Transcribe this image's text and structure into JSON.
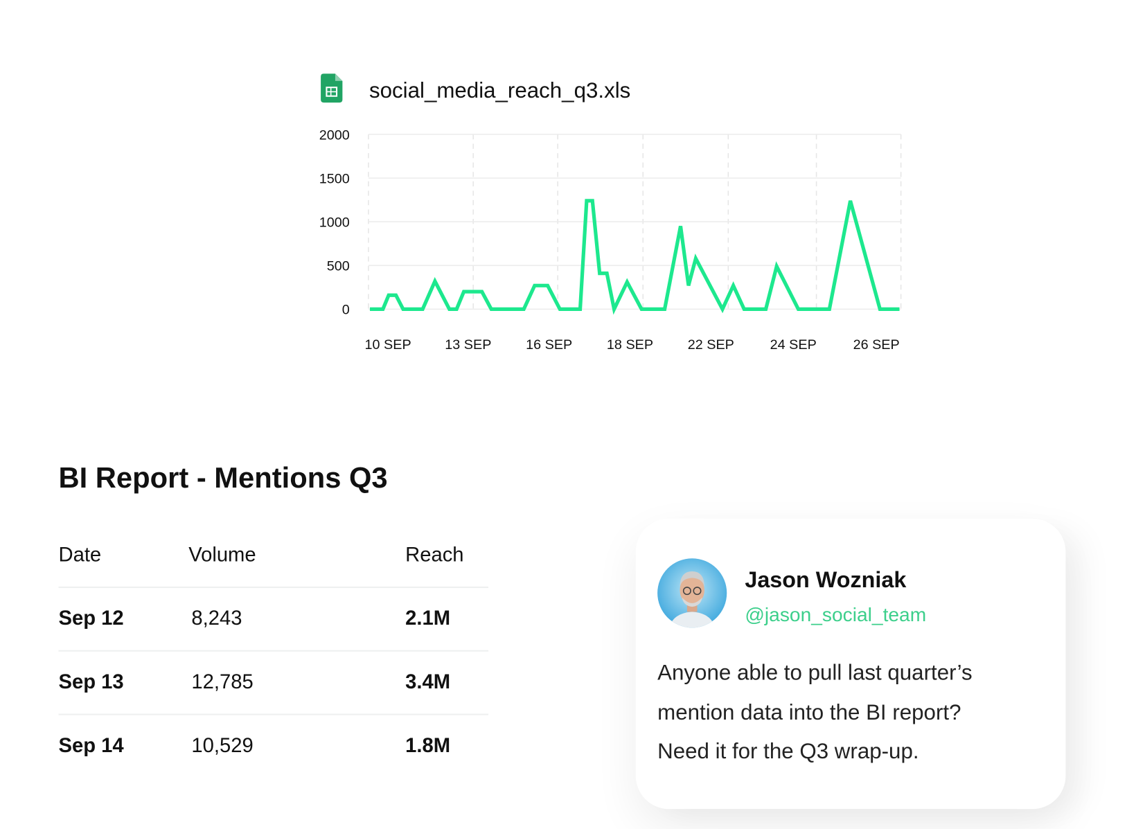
{
  "chart_data": {
    "type": "line",
    "title": "social_media_reach_q3.xls",
    "color": "#1de88e",
    "x": [
      0.1,
      1,
      1.4,
      1.9,
      2.4,
      3.75,
      4.6,
      5.6,
      6.1,
      6.6,
      7.85,
      8.5,
      10.75,
      11.5,
      12.4,
      13.25,
      14.65,
      15.1,
      15.5,
      16,
      16.5,
      17,
      17.9,
      18.9,
      20.5,
      21.6,
      22.15,
      22.65,
      24.5,
      25.25,
      26,
      27.5,
      28.25,
      29.75,
      31.9,
      33.35,
      35.4,
      36.75
    ],
    "values": [
      0,
      0,
      160,
      160,
      0,
      0,
      320,
      0,
      0,
      200,
      200,
      0,
      0,
      270,
      270,
      0,
      0,
      1240,
      1240,
      410,
      410,
      0,
      310,
      0,
      0,
      950,
      270,
      580,
      0,
      270,
      0,
      0,
      490,
      0,
      0,
      1240,
      0,
      0
    ],
    "xlim": [
      0,
      36.8
    ],
    "xticks": [
      {
        "value": 1.35,
        "label": "10 SEP"
      },
      {
        "value": 6.9,
        "label": "13 SEP"
      },
      {
        "value": 12.5,
        "label": "16 SEP"
      },
      {
        "value": 18.1,
        "label": "18 SEP"
      },
      {
        "value": 23.7,
        "label": "22 SEP"
      },
      {
        "value": 29.4,
        "label": "24 SEP"
      },
      {
        "value": 35.15,
        "label": "26 SEP"
      }
    ],
    "ylim": [
      0,
      2000
    ],
    "yticks": [
      0,
      500,
      1000,
      1500,
      2000
    ],
    "grid": true
  },
  "report": {
    "title": "BI Report - Mentions Q3",
    "headers": [
      "Date",
      "Volume",
      "Reach"
    ],
    "rows": [
      [
        "Sep 12",
        "8,243",
        "2.1M"
      ],
      [
        "Sep 13",
        "12,785",
        "3.4M"
      ],
      [
        "Sep 14",
        "10,529",
        "1.8M"
      ]
    ]
  },
  "message": {
    "name": "Jason Wozniak",
    "handle": "@jason_social_team",
    "lines": [
      "Anyone able to pull last quarter’s",
      "mention data into the BI report?",
      "Need it for the Q3 wrap-up."
    ]
  }
}
